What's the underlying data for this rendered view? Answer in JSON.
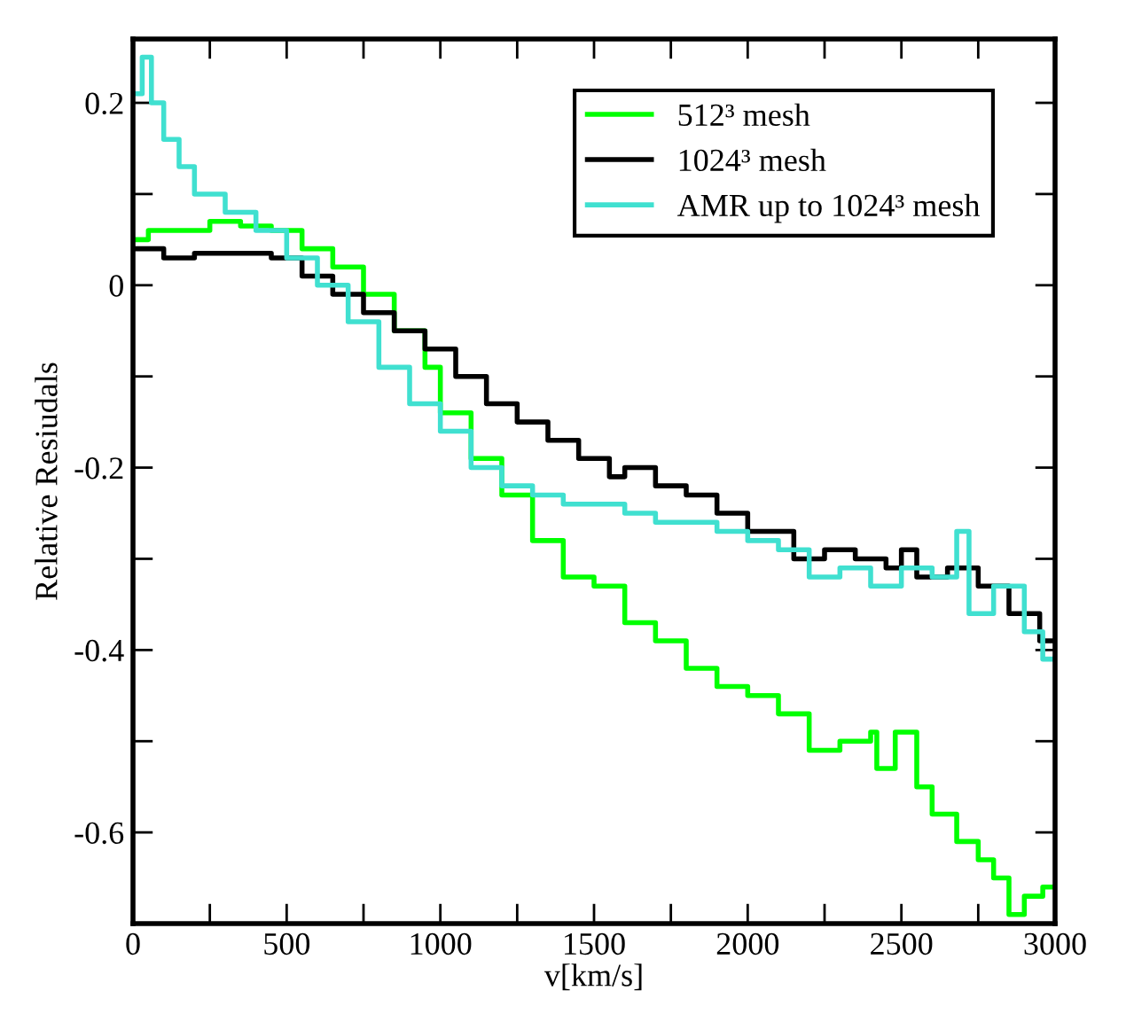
{
  "chart_data": {
    "type": "step",
    "xlabel": "v[km/s]",
    "ylabel": "Relative Resiudals",
    "xlim": [
      0,
      3000
    ],
    "ylim": [
      -0.7,
      0.27
    ],
    "xticks": [
      0,
      {
        "value": 250,
        "label": null
      },
      500,
      {
        "value": 750,
        "label": null
      },
      1000,
      {
        "value": 1250,
        "label": null
      },
      1500,
      {
        "value": 1750,
        "label": null
      },
      2000,
      {
        "value": 2250,
        "label": null
      },
      2500,
      {
        "value": 2750,
        "label": null
      },
      3000
    ],
    "yticks": [
      {
        "value": -0.7,
        "label": null
      },
      {
        "value": -0.6,
        "label": "-0.6"
      },
      {
        "value": -0.5,
        "label": null
      },
      {
        "value": -0.4,
        "label": "-0.4"
      },
      {
        "value": -0.3,
        "label": null
      },
      {
        "value": -0.2,
        "label": "-0.2"
      },
      {
        "value": -0.1,
        "label": null
      },
      0,
      {
        "value": 0.1,
        "label": null
      },
      0.2
    ],
    "grid": false,
    "legend": "top right",
    "line_style": "solid",
    "marker": "none",
    "series": [
      {
        "name": "512³ mesh",
        "color": "#00ff00",
        "x": [
          0,
          50,
          200,
          250,
          350,
          450,
          550,
          650,
          750,
          850,
          950,
          1000,
          1100,
          1200,
          1300,
          1400,
          1500,
          1600,
          1700,
          1800,
          1900,
          2000,
          2100,
          2200,
          2300,
          2400,
          2420,
          2480,
          2550,
          2600,
          2680,
          2750,
          2800,
          2850,
          2900,
          2960,
          3000
        ],
        "values": [
          0.05,
          0.06,
          0.06,
          0.07,
          0.065,
          0.06,
          0.04,
          0.02,
          -0.01,
          -0.05,
          -0.09,
          -0.14,
          -0.19,
          -0.23,
          -0.28,
          -0.32,
          -0.33,
          -0.37,
          -0.39,
          -0.42,
          -0.44,
          -0.45,
          -0.47,
          -0.51,
          -0.5,
          -0.49,
          -0.53,
          -0.49,
          -0.55,
          -0.58,
          -0.61,
          -0.63,
          -0.65,
          -0.69,
          -0.67,
          -0.66,
          -0.66
        ]
      },
      {
        "name": "1024³ mesh",
        "color": "#000000",
        "x": [
          0,
          100,
          200,
          350,
          450,
          550,
          650,
          750,
          850,
          950,
          1050,
          1150,
          1250,
          1350,
          1450,
          1550,
          1600,
          1700,
          1800,
          1900,
          2000,
          2150,
          2250,
          2350,
          2450,
          2500,
          2550,
          2650,
          2750,
          2850,
          2950,
          3000
        ],
        "values": [
          0.04,
          0.03,
          0.035,
          0.035,
          0.03,
          0.01,
          -0.01,
          -0.03,
          -0.05,
          -0.07,
          -0.1,
          -0.13,
          -0.15,
          -0.17,
          -0.19,
          -0.21,
          -0.2,
          -0.22,
          -0.23,
          -0.25,
          -0.27,
          -0.3,
          -0.29,
          -0.3,
          -0.31,
          -0.29,
          -0.32,
          -0.31,
          -0.33,
          -0.36,
          -0.39,
          -0.39
        ]
      },
      {
        "name": "AMR up to 1024³ mesh",
        "color": "#40e0d0",
        "x": [
          0,
          30,
          60,
          100,
          150,
          200,
          300,
          400,
          500,
          600,
          700,
          800,
          900,
          1000,
          1100,
          1200,
          1300,
          1400,
          1500,
          1600,
          1700,
          1800,
          1900,
          2000,
          2100,
          2200,
          2300,
          2400,
          2500,
          2600,
          2680,
          2720,
          2800,
          2900,
          2960,
          3000
        ],
        "values": [
          0.21,
          0.25,
          0.2,
          0.16,
          0.13,
          0.1,
          0.08,
          0.06,
          0.03,
          0.0,
          -0.04,
          -0.09,
          -0.13,
          -0.16,
          -0.2,
          -0.22,
          -0.23,
          -0.24,
          -0.24,
          -0.25,
          -0.26,
          -0.26,
          -0.27,
          -0.28,
          -0.29,
          -0.32,
          -0.31,
          -0.33,
          -0.31,
          -0.32,
          -0.27,
          -0.36,
          -0.33,
          -0.38,
          -0.41,
          -0.41
        ]
      }
    ]
  }
}
